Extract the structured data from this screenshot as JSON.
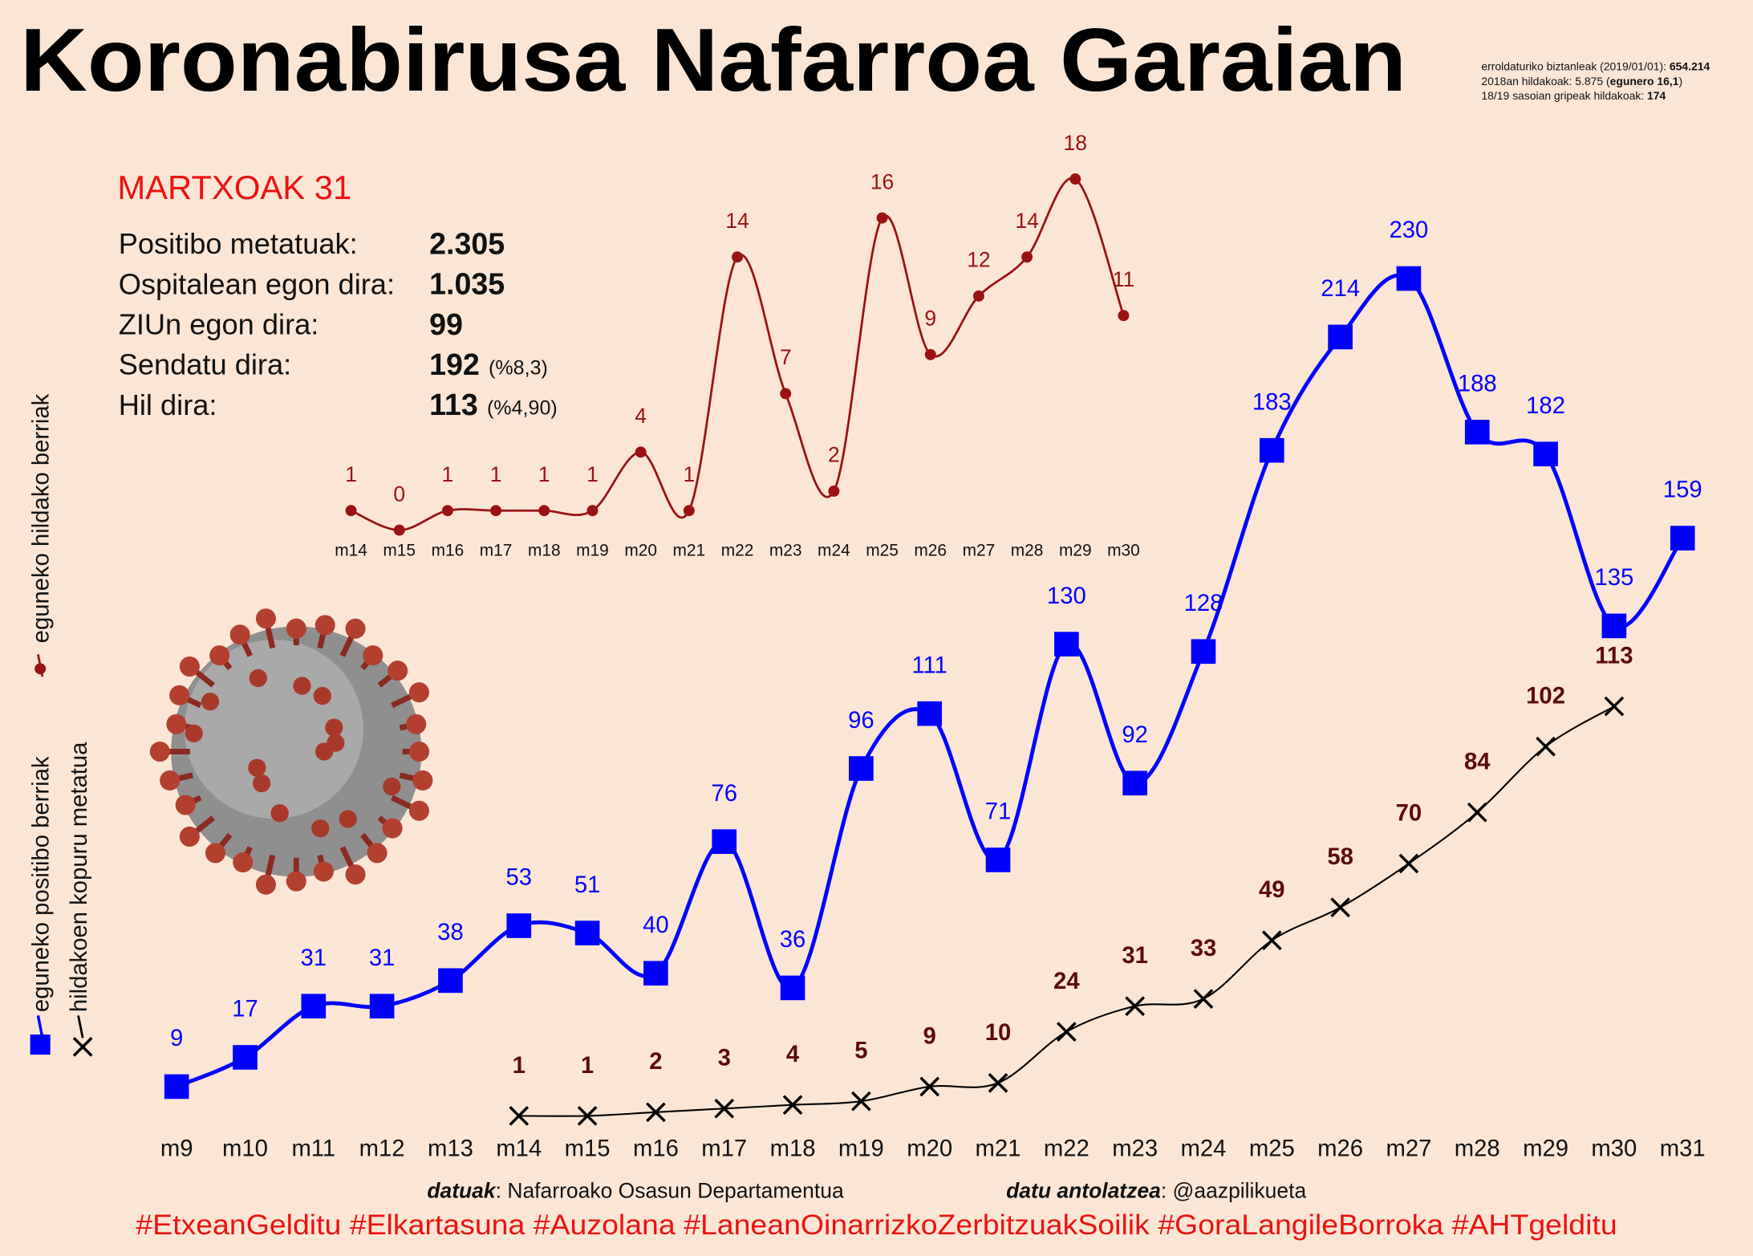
{
  "title": "Koronabirusa Nafarroa Garaian",
  "date_heading": "MARTXOAK 31",
  "stats": [
    {
      "label": "Positibo metatuak:",
      "value": "2.305"
    },
    {
      "label": "Ospitalean egon dira:",
      "value": "1.035"
    },
    {
      "label": "ZIUn egon dira:",
      "value": "99"
    },
    {
      "label": "Sendatu dira:",
      "value": "192",
      "note": "(%8,3)"
    },
    {
      "label": "Hil dira:",
      "value": "113",
      "note": "(%4,90)"
    }
  ],
  "notes": [
    {
      "label": "erroldaturiko biztanleak (2019/01/01): ",
      "value": "654.214"
    },
    {
      "label": "2018an hildakoak: 5.875 (",
      "value": "egunero 16,1",
      "suffix": ")"
    },
    {
      "label": "18/19 sasoian gripeak hildakoak: ",
      "value": "174"
    }
  ],
  "chart_data": [
    {
      "type": "line",
      "categories": [
        "m9",
        "m10",
        "m11",
        "m12",
        "m13",
        "m14",
        "m15",
        "m16",
        "m17",
        "m18",
        "m19",
        "m20",
        "m21",
        "m22",
        "m23",
        "m24",
        "m25",
        "m26",
        "m27",
        "m28",
        "m29",
        "m30",
        "m31"
      ],
      "series": [
        {
          "name": "eguneko positibo berriak",
          "color": "#0000ff",
          "marker": "square",
          "values": [
            9,
            17,
            31,
            31,
            38,
            53,
            51,
            40,
            76,
            36,
            96,
            111,
            71,
            130,
            92,
            128,
            183,
            214,
            230,
            188,
            182,
            135,
            159
          ]
        },
        {
          "name": "hildakoen kopuru metatua",
          "color": "#000000",
          "label_color": "#5c0a0a",
          "marker": "cross",
          "values": [
            null,
            null,
            null,
            null,
            null,
            1,
            1,
            2,
            3,
            4,
            5,
            9,
            10,
            24,
            31,
            33,
            49,
            58,
            70,
            84,
            102,
            113,
            null
          ]
        }
      ]
    },
    {
      "type": "line",
      "categories": [
        "m14",
        "m15",
        "m16",
        "m17",
        "m18",
        "m19",
        "m20",
        "m21",
        "m22",
        "m23",
        "m24",
        "m25",
        "m26",
        "m27",
        "m28",
        "m29",
        "m30"
      ],
      "series": [
        {
          "name": "eguneko hildako berriak",
          "color": "#9b1212",
          "marker": "circle",
          "values": [
            1,
            0,
            1,
            1,
            1,
            1,
            4,
            1,
            14,
            7,
            2,
            16,
            9,
            12,
            14,
            18,
            11
          ]
        }
      ]
    }
  ],
  "credits": [
    {
      "label": "datuak",
      "text": ": Nafarroako Osasun Departamentua"
    },
    {
      "label": "datu antolatzea",
      "text": ": @aazpilikueta"
    }
  ],
  "hashtags": "#EtxeanGelditu #Elkartasuna #Auzolana #LaneanOinarrizkoZerbitzuakSoilik #GoraLangileBorroka #AHTgelditu"
}
